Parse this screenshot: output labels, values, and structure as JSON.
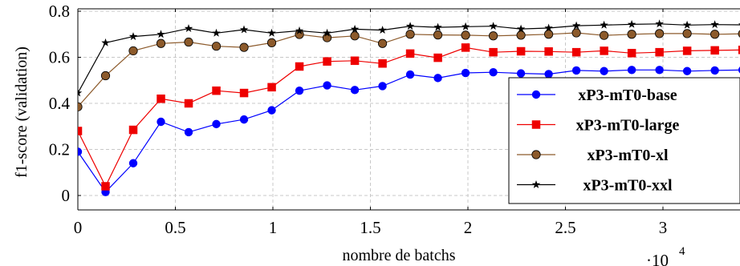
{
  "chart_data": {
    "type": "line",
    "title": "",
    "xlabel": "nombre de batchs",
    "ylabel": "f1-score (validation)",
    "x_scale_label": "·10",
    "x_scale_exponent": "4",
    "xlim": [
      0,
      3.45
    ],
    "ylim": [
      -0.06,
      0.81
    ],
    "xticks": [
      0,
      0.5,
      1,
      1.5,
      2,
      2.5,
      3
    ],
    "xtick_labels": [
      "0",
      "0.5",
      "1",
      "1.5",
      "2",
      "2.5",
      "3"
    ],
    "yticks": [
      0,
      0.2,
      0.4,
      0.6,
      0.8
    ],
    "ytick_labels": [
      "0",
      "0.2",
      "0.4",
      "0.6",
      "0.8"
    ],
    "grid": true,
    "legend_position": "lower-right",
    "x": [
      0,
      0.142,
      0.284,
      0.426,
      0.568,
      0.71,
      0.852,
      0.994,
      1.136,
      1.278,
      1.42,
      1.562,
      1.704,
      1.846,
      1.988,
      2.13,
      2.272,
      2.414,
      2.556,
      2.698,
      2.84,
      2.982,
      3.124,
      3.266,
      3.408
    ],
    "series": [
      {
        "name": "xP3-mT0-base",
        "color": "#0000ff",
        "marker": "circle",
        "values": [
          0.19,
          0.015,
          0.14,
          0.32,
          0.275,
          0.31,
          0.33,
          0.37,
          0.455,
          0.478,
          0.458,
          0.475,
          0.525,
          0.51,
          0.532,
          0.535,
          0.53,
          0.527,
          0.543,
          0.54,
          0.545,
          0.545,
          0.54,
          0.543,
          0.545
        ]
      },
      {
        "name": "xP3-mT0-large",
        "color": "#ee0000",
        "marker": "square",
        "values": [
          0.28,
          0.04,
          0.285,
          0.42,
          0.4,
          0.455,
          0.445,
          0.47,
          0.56,
          0.582,
          0.585,
          0.573,
          0.616,
          0.598,
          0.642,
          0.622,
          0.626,
          0.625,
          0.622,
          0.628,
          0.618,
          0.622,
          0.628,
          0.63,
          0.632
        ]
      },
      {
        "name": "xP3-mT0-xl",
        "color": "#8c5a2b",
        "marker": "circle",
        "values": [
          0.385,
          0.52,
          0.628,
          0.66,
          0.666,
          0.648,
          0.643,
          0.663,
          0.699,
          0.685,
          0.693,
          0.66,
          0.7,
          0.697,
          0.696,
          0.693,
          0.696,
          0.7,
          0.706,
          0.695,
          0.7,
          0.703,
          0.703,
          0.7,
          0.702
        ]
      },
      {
        "name": "xP3-mT0-xxl",
        "color": "#000000",
        "marker": "star",
        "values": [
          0.445,
          0.663,
          0.69,
          0.7,
          0.725,
          0.705,
          0.72,
          0.705,
          0.715,
          0.705,
          0.722,
          0.718,
          0.735,
          0.73,
          0.733,
          0.735,
          0.723,
          0.727,
          0.737,
          0.74,
          0.743,
          0.745,
          0.74,
          0.742,
          0.741
        ]
      }
    ]
  }
}
